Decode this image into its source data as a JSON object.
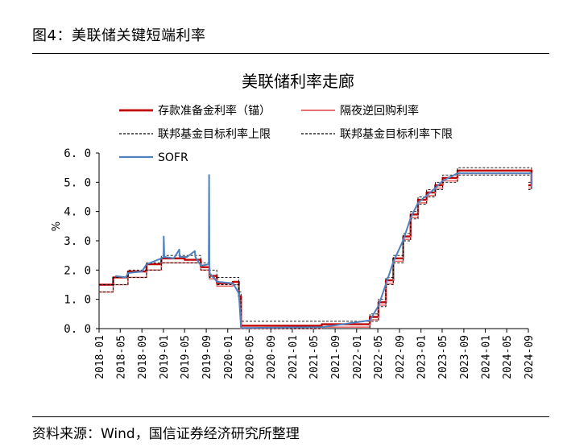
{
  "figure_label": "图4：美联储关键短端利率",
  "source_text": "资料来源：Wind，国信证券经济研究所整理",
  "chart_data": {
    "type": "line",
    "title": "美联储利率走廊",
    "ylabel": "%",
    "ylim": [
      0,
      6
    ],
    "yticks": [
      "0.0",
      "1.0",
      "2.0",
      "3.0",
      "4.0",
      "5.0",
      "6.0"
    ],
    "xticks": [
      "2018-01",
      "2018-05",
      "2018-09",
      "2019-01",
      "2019-05",
      "2019-09",
      "2020-01",
      "2020-05",
      "2020-09",
      "2021-01",
      "2021-05",
      "2021-09",
      "2022-01",
      "2022-05",
      "2022-09",
      "2023-01",
      "2023-05",
      "2023-09",
      "2024-01",
      "2024-05",
      "2024-09"
    ],
    "legend": [
      {
        "label": "存款准备金利率（锚）",
        "color": "#c00000",
        "style": "solid-thick"
      },
      {
        "label": "隔夜逆回购利率",
        "color": "#e87070",
        "style": "solid"
      },
      {
        "label": "联邦基金目标利率上限",
        "color": "#000000",
        "style": "dashed"
      },
      {
        "label": "联邦基金目标利率下限",
        "color": "#000000",
        "style": "dashed"
      },
      {
        "label": "SOFR",
        "color": "#4f81bd",
        "style": "solid"
      }
    ],
    "series": [
      {
        "name": "存款准备金利率（锚）",
        "points": [
          [
            "2018-01-01",
            1.5
          ],
          [
            "2018-03-22",
            1.75
          ],
          [
            "2018-06-14",
            1.95
          ],
          [
            "2018-09-27",
            2.2
          ],
          [
            "2018-12-20",
            2.4
          ],
          [
            "2019-05-02",
            2.35
          ],
          [
            "2019-08-01",
            2.1
          ],
          [
            "2019-09-19",
            1.8
          ],
          [
            "2019-10-31",
            1.55
          ],
          [
            "2020-01-30",
            1.6
          ],
          [
            "2020-03-04",
            1.1
          ],
          [
            "2020-03-16",
            0.1
          ],
          [
            "2021-06-17",
            0.15
          ],
          [
            "2022-03-17",
            0.4
          ],
          [
            "2022-05-05",
            0.9
          ],
          [
            "2022-06-16",
            1.65
          ],
          [
            "2022-07-28",
            2.4
          ],
          [
            "2022-09-22",
            3.15
          ],
          [
            "2022-11-03",
            3.9
          ],
          [
            "2022-12-15",
            4.4
          ],
          [
            "2023-02-02",
            4.65
          ],
          [
            "2023-03-23",
            4.9
          ],
          [
            "2023-05-04",
            5.15
          ],
          [
            "2023-07-27",
            5.4
          ],
          [
            "2024-09-19",
            4.9
          ]
        ]
      },
      {
        "name": "隔夜逆回购利率",
        "points": [
          [
            "2018-01-01",
            1.25
          ],
          [
            "2018-03-22",
            1.5
          ],
          [
            "2018-06-14",
            1.75
          ],
          [
            "2018-09-27",
            2.0
          ],
          [
            "2018-12-20",
            2.25
          ],
          [
            "2019-08-01",
            2.0
          ],
          [
            "2019-09-19",
            1.7
          ],
          [
            "2019-10-31",
            1.45
          ],
          [
            "2020-01-30",
            1.5
          ],
          [
            "2020-03-04",
            1.0
          ],
          [
            "2020-03-16",
            0.0
          ],
          [
            "2021-06-17",
            0.05
          ],
          [
            "2022-03-17",
            0.3
          ],
          [
            "2022-05-05",
            0.8
          ],
          [
            "2022-06-16",
            1.55
          ],
          [
            "2022-07-28",
            2.3
          ],
          [
            "2022-09-22",
            3.05
          ],
          [
            "2022-11-03",
            3.8
          ],
          [
            "2022-12-15",
            4.3
          ],
          [
            "2023-02-02",
            4.55
          ],
          [
            "2023-03-23",
            4.8
          ],
          [
            "2023-05-04",
            5.05
          ],
          [
            "2023-07-27",
            5.3
          ],
          [
            "2024-09-19",
            4.8
          ]
        ]
      },
      {
        "name": "联邦基金目标利率上限",
        "points": [
          [
            "2018-01-01",
            1.5
          ],
          [
            "2018-03-22",
            1.75
          ],
          [
            "2018-06-14",
            2.0
          ],
          [
            "2018-09-27",
            2.25
          ],
          [
            "2018-12-20",
            2.5
          ],
          [
            "2019-08-01",
            2.25
          ],
          [
            "2019-09-19",
            2.0
          ],
          [
            "2019-10-31",
            1.75
          ],
          [
            "2020-03-04",
            1.25
          ],
          [
            "2020-03-16",
            0.25
          ],
          [
            "2022-03-17",
            0.5
          ],
          [
            "2022-05-05",
            1.0
          ],
          [
            "2022-06-16",
            1.75
          ],
          [
            "2022-07-28",
            2.5
          ],
          [
            "2022-09-22",
            3.25
          ],
          [
            "2022-11-03",
            4.0
          ],
          [
            "2022-12-15",
            4.5
          ],
          [
            "2023-02-02",
            4.75
          ],
          [
            "2023-03-23",
            5.0
          ],
          [
            "2023-05-04",
            5.25
          ],
          [
            "2023-07-27",
            5.5
          ],
          [
            "2024-09-19",
            5.0
          ]
        ]
      },
      {
        "name": "联邦基金目标利率下限",
        "points": [
          [
            "2018-01-01",
            1.25
          ],
          [
            "2018-03-22",
            1.5
          ],
          [
            "2018-06-14",
            1.75
          ],
          [
            "2018-09-27",
            2.0
          ],
          [
            "2018-12-20",
            2.25
          ],
          [
            "2019-08-01",
            2.0
          ],
          [
            "2019-09-19",
            1.75
          ],
          [
            "2019-10-31",
            1.5
          ],
          [
            "2020-03-04",
            1.0
          ],
          [
            "2020-03-16",
            0.0
          ],
          [
            "2022-03-17",
            0.25
          ],
          [
            "2022-05-05",
            0.75
          ],
          [
            "2022-06-16",
            1.5
          ],
          [
            "2022-07-28",
            2.25
          ],
          [
            "2022-09-22",
            3.0
          ],
          [
            "2022-11-03",
            3.75
          ],
          [
            "2022-12-15",
            4.25
          ],
          [
            "2023-02-02",
            4.5
          ],
          [
            "2023-03-23",
            4.75
          ],
          [
            "2023-05-04",
            5.0
          ],
          [
            "2023-07-27",
            5.25
          ],
          [
            "2024-09-19",
            4.75
          ]
        ]
      },
      {
        "name": "SOFR",
        "points": [
          [
            "2018-04-03",
            1.8
          ],
          [
            "2018-06-01",
            1.75
          ],
          [
            "2018-06-15",
            1.9
          ],
          [
            "2018-09-01",
            1.95
          ],
          [
            "2018-09-28",
            2.2
          ],
          [
            "2018-12-21",
            2.4
          ],
          [
            "2019-01-02",
            2.45
          ],
          [
            "2019-01-03",
            3.15
          ],
          [
            "2019-01-06",
            2.45
          ],
          [
            "2019-03-01",
            2.4
          ],
          [
            "2019-04-01",
            2.7
          ],
          [
            "2019-04-03",
            2.45
          ],
          [
            "2019-05-15",
            2.45
          ],
          [
            "2019-06-28",
            2.65
          ],
          [
            "2019-07-01",
            2.45
          ],
          [
            "2019-08-02",
            2.15
          ],
          [
            "2019-09-15",
            2.2
          ],
          [
            "2019-09-17",
            5.25
          ],
          [
            "2019-09-19",
            2.0
          ],
          [
            "2019-09-20",
            1.9
          ],
          [
            "2019-11-01",
            1.6
          ],
          [
            "2020-01-31",
            1.55
          ],
          [
            "2020-03-04",
            1.2
          ],
          [
            "2020-03-16",
            0.05
          ],
          [
            "2020-03-20",
            0.02
          ],
          [
            "2021-06-17",
            0.05
          ],
          [
            "2022-03-17",
            0.28
          ],
          [
            "2022-05-05",
            0.78
          ],
          [
            "2022-06-16",
            1.52
          ],
          [
            "2022-07-28",
            2.28
          ],
          [
            "2022-09-22",
            3.02
          ],
          [
            "2022-11-03",
            3.78
          ],
          [
            "2022-12-15",
            4.3
          ],
          [
            "2023-02-02",
            4.55
          ],
          [
            "2023-03-23",
            4.8
          ],
          [
            "2023-05-04",
            5.05
          ],
          [
            "2023-07-27",
            5.31
          ],
          [
            "2024-09-18",
            5.31
          ],
          [
            "2024-09-19",
            4.82
          ]
        ]
      }
    ]
  }
}
